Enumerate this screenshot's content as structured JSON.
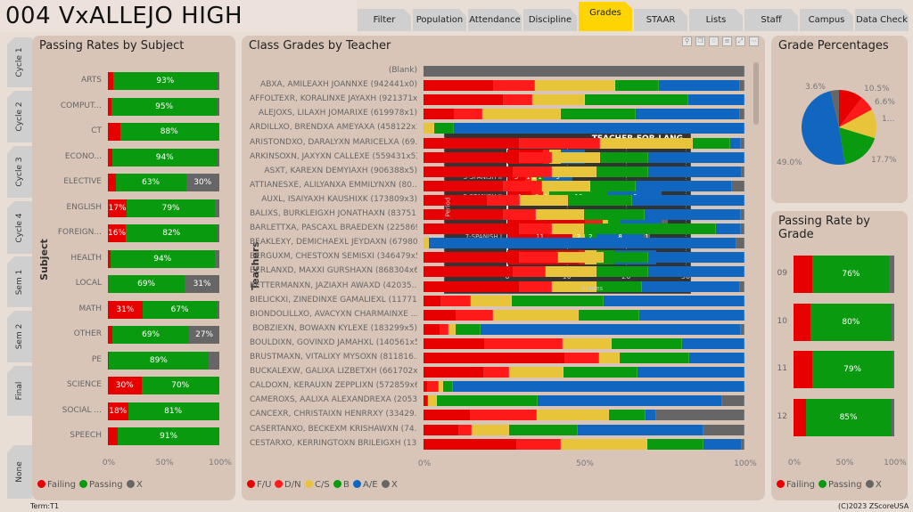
{
  "header": {
    "title": "004 VxALLEJO HIGH"
  },
  "tabs": [
    {
      "label": "Filter"
    },
    {
      "label": "Population"
    },
    {
      "label": "Attendance"
    },
    {
      "label": "Discipline"
    },
    {
      "label": "Grades",
      "active": true
    },
    {
      "label": "STAAR"
    },
    {
      "label": "Lists"
    },
    {
      "label": "Staff"
    },
    {
      "label": "Campus"
    },
    {
      "label": "Data Check"
    }
  ],
  "term_tabs": [
    {
      "label": "Cycle 1"
    },
    {
      "label": "Cycle 2"
    },
    {
      "label": "Cycle 3"
    },
    {
      "label": "Cycle 4"
    },
    {
      "label": "Sem 1"
    },
    {
      "label": "Sem 2"
    },
    {
      "label": "Final"
    },
    {
      "label": "None"
    }
  ],
  "colors": {
    "failing": "#e60000",
    "passing": "#0a9a10",
    "x": "#666666",
    "fu": "#e60000",
    "dn": "#ff1a1a",
    "cs": "#e8c43a",
    "b": "#0a9a10",
    "ae": "#1167c0"
  },
  "subject_chart": {
    "title": "Passing Rates by Subject",
    "ylabel": "Subject",
    "xticks": [
      "0%",
      "50%",
      "100%"
    ],
    "legend": [
      "Failing",
      "Passing",
      "X"
    ],
    "rows": [
      {
        "label": "ARTS",
        "failing": 5,
        "passing": 93,
        "x": 2,
        "labels": [
          "",
          "93%",
          ""
        ]
      },
      {
        "label": "COMPUT...",
        "failing": 3,
        "passing": 95,
        "x": 2,
        "labels": [
          "",
          "95%",
          ""
        ]
      },
      {
        "label": "CT",
        "failing": 11,
        "passing": 88,
        "x": 1,
        "labels": [
          "",
          "88%",
          ""
        ]
      },
      {
        "label": "ECONO...",
        "failing": 4,
        "passing": 94,
        "x": 2,
        "labels": [
          "",
          "94%",
          ""
        ]
      },
      {
        "label": "ELECTIVE",
        "failing": 7,
        "passing": 63,
        "x": 30,
        "labels": [
          "",
          "63%",
          "30%"
        ]
      },
      {
        "label": "ENGLISH",
        "failing": 17,
        "passing": 79,
        "x": 4,
        "labels": [
          "17%",
          "79%",
          ""
        ]
      },
      {
        "label": "FOREIGN...",
        "failing": 16,
        "passing": 82,
        "x": 2,
        "labels": [
          "16%",
          "82%",
          ""
        ]
      },
      {
        "label": "HEALTH",
        "failing": 2,
        "passing": 94,
        "x": 4,
        "labels": [
          "",
          "94%",
          ""
        ]
      },
      {
        "label": "LOCAL",
        "failing": 0,
        "passing": 69,
        "x": 31,
        "labels": [
          "",
          "69%",
          "31%"
        ]
      },
      {
        "label": "MATH",
        "failing": 31,
        "passing": 67,
        "x": 2,
        "labels": [
          "31%",
          "67%",
          ""
        ]
      },
      {
        "label": "OTHER",
        "failing": 4,
        "passing": 69,
        "x": 27,
        "labels": [
          "",
          "69%",
          "27%"
        ]
      },
      {
        "label": "PE",
        "failing": 1,
        "passing": 89,
        "x": 10,
        "labels": [
          "",
          "89%",
          ""
        ]
      },
      {
        "label": "SCIENCE",
        "failing": 30,
        "passing": 70,
        "x": 0,
        "labels": [
          "30%",
          "70%",
          ""
        ]
      },
      {
        "label": "SOCIAL ...",
        "failing": 18,
        "passing": 81,
        "x": 1,
        "labels": [
          "18%",
          "81%",
          ""
        ]
      },
      {
        "label": "SPEECH",
        "failing": 9,
        "passing": 91,
        "x": 0,
        "labels": [
          "",
          "91%",
          ""
        ]
      }
    ]
  },
  "teacher_chart": {
    "title": "Class Grades by Teacher",
    "ylabel": "Teachers",
    "xticks": [
      "0%",
      "50%",
      "100%"
    ],
    "legend": [
      "F/U",
      "D/N",
      "C/S",
      "B",
      "A/E",
      "X"
    ],
    "rows": [
      {
        "label": "(Blank)",
        "v": [
          0,
          0,
          0,
          0,
          0,
          100
        ]
      },
      {
        "label": "ABXA, AMILEAXH JOANNXE (942441x0)",
        "v": [
          22,
          12.7,
          25,
          13.5,
          25.3,
          1.5
        ]
      },
      {
        "label": "AFFOLTEXR, KORALINXE JAYAXH (921371x7)",
        "v": [
          25,
          9,
          16.4,
          32,
          17.6,
          0
        ]
      },
      {
        "label": "ALEJOXS, LILAXH JOMARIXE (619978x1)",
        "v": [
          9.8,
          8.6,
          24.4,
          23.3,
          32.4,
          1.5
        ]
      },
      {
        "label": "ARDILLXO, BRENDXA AMEYAXA (458122x1)",
        "v": [
          0,
          0,
          3.3,
          6.2,
          90.5,
          0
        ]
      },
      {
        "label": "ARISTONDXO, DARALYXN MARICELXA (69...",
        "v": [
          30,
          25,
          29,
          11.5,
          3.5,
          1
        ]
      },
      {
        "label": "ARKINSOXN, JAXYXN CALLEXE (559431x5)",
        "v": [
          30,
          10,
          15,
          15,
          30,
          0
        ]
      },
      {
        "label": "ASXT, KAREXN DEMYIAXH (906388x5)",
        "v": [
          28,
          12,
          14,
          16,
          29.3,
          0.7
        ]
      },
      {
        "label": "ATTIANESXE, ALILYANXA EMMILYNXN (80...",
        "v": [
          25,
          12,
          15,
          14,
          30,
          4
        ]
      },
      {
        "label": "AUXL, ISAIYAXH KAUSHIXK (173809x3)",
        "v": [
          20,
          10,
          15,
          20,
          35,
          0
        ]
      },
      {
        "label": "BALIXS, BURKLEIGXH JONATHAXN (83751...",
        "v": [
          25,
          10,
          15,
          19,
          30,
          1
        ]
      },
      {
        "label": "BARLETTXA, PASCAXL BRAEDEXN (225869...",
        "v": [
          30,
          10,
          10,
          41,
          8,
          1
        ]
      },
      {
        "label": "BEAKLEXY, DEMICHAEXL JEYDAXN (67980...",
        "v": [
          0,
          0,
          1.6,
          0,
          95.9,
          2.5
        ]
      },
      {
        "label": "BERGUXM, CHESTOXN SEMISXI (346479x5)",
        "v": [
          30,
          12,
          14,
          14,
          30,
          0
        ]
      },
      {
        "label": "BERLANXD, MAXXI GURSHAXN (868304x6)",
        "v": [
          28,
          10,
          16,
          16,
          30,
          0
        ]
      },
      {
        "label": "BETTERMANXN, JAZIAXH AWAXD (42035...",
        "v": [
          30,
          10,
          14,
          14,
          30.5,
          1.5
        ]
      },
      {
        "label": "BIELICKXI, ZINEDINXE GAMALIEXL (11771...",
        "v": [
          5.6,
          9,
          13,
          28.5,
          43.9,
          0
        ]
      },
      {
        "label": "BIONDOLILLXO, AVACYXN CHARMAINXE ...",
        "v": [
          10.4,
          11.2,
          26.8,
          18.7,
          32.9,
          0
        ]
      },
      {
        "label": "BOBZIEXN, BOWAXN KYLEXE (183299x5)",
        "v": [
          5.3,
          2.4,
          2.2,
          7.8,
          81.3,
          1
        ]
      },
      {
        "label": "BOULDIXN, GOVINXD JAMAHXL (140561x5)",
        "v": [
          19.2,
          24.2,
          15.2,
          22,
          19.4,
          0
        ]
      },
      {
        "label": "BRUSTMAXN, VITALIXY MYSOXN (811816...",
        "v": [
          44.2,
          10.4,
          6.6,
          21.7,
          17.1,
          0
        ]
      },
      {
        "label": "BUCKALEXW, GALIXA LIZBETXH (661702x8)",
        "v": [
          19,
          7.8,
          16.8,
          23.1,
          33.3,
          0
        ]
      },
      {
        "label": "CALDOXN, KERAUXN ZEPPLIXN (572859x6)",
        "v": [
          1.5,
          3.1,
          1.5,
          3.1,
          90.8,
          0
        ]
      },
      {
        "label": "CAMEROXS, AALIXA ALEXANDREXA (2053...",
        "v": [
          1.4,
          0,
          2.7,
          31.5,
          57.4,
          7
        ]
      },
      {
        "label": "CANCEXR, CHRISTAIXN HENRRXY (33429...",
        "v": [
          14.6,
          20.8,
          22.5,
          11.2,
          3.3,
          27.6
        ]
      },
      {
        "label": "CASERTANXO, BECKEXM KRISHAWXN (74...",
        "v": [
          11.2,
          3.8,
          11.8,
          21.2,
          39.3,
          12.7
        ]
      },
      {
        "label": "CESTARXO, KERRINGTOXN BRILEIGXH (13...",
        "v": [
          29.3,
          13.5,
          27,
          17.3,
          12,
          0.9
        ]
      }
    ]
  },
  "tooltip": {
    "title": "TEACHER-FOR-LANG",
    "xlabel": "Grades",
    "ylabel": "Period",
    "xticks": [
      "0",
      "10",
      "20",
      "30"
    ],
    "xmax": 30,
    "rows": [
      {
        "label": "1-SPANISH II",
        "v": [
          6,
          1,
          2,
          0,
          4,
          0
        ]
      },
      {
        "label": "3-SPANISH II",
        "v": [
          3,
          1,
          1,
          1,
          5,
          0
        ]
      },
      {
        "label": "5-SPANISH II",
        "v": [
          4,
          2,
          1,
          10,
          9,
          0
        ]
      },
      {
        "label": "6-SPANISH I",
        "v": [
          13,
          3,
          1,
          2,
          7,
          1
        ]
      },
      {
        "label": "7-SPANISH I",
        "v": [
          11,
          0,
          2,
          2,
          8,
          1
        ]
      },
      {
        "label": "8-SPANISH I",
        "v": [
          12,
          1,
          2,
          3,
          7,
          0
        ]
      }
    ]
  },
  "pie": {
    "title": "Grade Percentages",
    "slices": [
      {
        "value": 10.5,
        "label": "10.5%"
      },
      {
        "value": 6.6,
        "label": "6.6%"
      },
      {
        "value": 12.6,
        "label": "1..."
      },
      {
        "value": 17.7,
        "label": "17.7%"
      },
      {
        "value": 49.0,
        "label": "49.0%"
      },
      {
        "value": 3.6,
        "label": "3.6%"
      }
    ]
  },
  "grade_chart": {
    "title": "Passing Rate by Grade",
    "xticks": [
      "0%",
      "50%",
      "100%"
    ],
    "legend": [
      "Failing",
      "Passing",
      "X"
    ],
    "rows": [
      {
        "label": "09",
        "failing": 19,
        "passing": 76,
        "x": 5,
        "labels": [
          "",
          "76%",
          ""
        ]
      },
      {
        "label": "10",
        "failing": 17,
        "passing": 80,
        "x": 3,
        "labels": [
          "",
          "80%",
          ""
        ]
      },
      {
        "label": "11",
        "failing": 19,
        "passing": 79,
        "x": 2,
        "labels": [
          "",
          "79%",
          ""
        ]
      },
      {
        "label": "12",
        "failing": 12,
        "passing": 85,
        "x": 3,
        "labels": [
          "",
          "85%",
          ""
        ]
      }
    ]
  },
  "toolbar": {
    "icons": [
      "pin-icon",
      "copy-icon",
      "bell-icon",
      "filter-icon",
      "focus-icon",
      "more-icon"
    ],
    "glyphs": [
      "⚲",
      "❐",
      "♢",
      "≡",
      "⤢",
      "⋯"
    ]
  },
  "footer": {
    "term": "Term:T1",
    "copyright": "(C)2023 ZScoreUSA"
  }
}
